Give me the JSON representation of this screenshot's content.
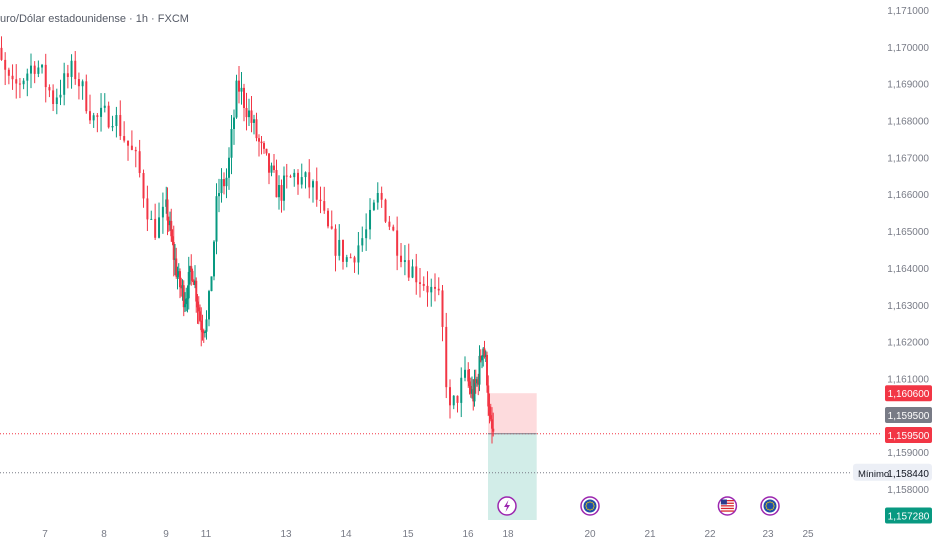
{
  "chart_data": {
    "type": "candlestick",
    "title": "uro/Dólar estadounidense · 1h · FXCM",
    "y_ticks": [
      "1,171000",
      "1,170000",
      "1,169000",
      "1,168000",
      "1,167000",
      "1,166000",
      "1,165000",
      "1,164000",
      "1,163000",
      "1,162000",
      "1,161000",
      "1,159000",
      "1,158000"
    ],
    "x_ticks": [
      {
        "label": "7",
        "day": 7
      },
      {
        "label": "8",
        "day": 8
      },
      {
        "label": "9",
        "day": 9
      },
      {
        "label": "11",
        "day": 11
      },
      {
        "label": "13",
        "day": 13
      },
      {
        "label": "14",
        "day": 14
      },
      {
        "label": "15",
        "day": 15
      },
      {
        "label": "16",
        "day": 16
      },
      {
        "label": "18",
        "day": 18
      },
      {
        "label": "20",
        "day": 20
      },
      {
        "label": "21",
        "day": 21
      },
      {
        "label": "22",
        "day": 22
      },
      {
        "label": "23",
        "day": 23
      },
      {
        "label": "25",
        "day": 25
      }
    ],
    "ylim": [
      1.157,
      1.1715
    ],
    "price_labels": {
      "stop": {
        "text": "1,160600",
        "value": 1.1606,
        "color": "#f23645"
      },
      "entry": {
        "text": "1,159500",
        "value": 1.1595,
        "color": "#f23645"
      },
      "current": {
        "text": "1,159500",
        "value": 1.1595,
        "color": "#787b86"
      },
      "minimum": {
        "label": "Mínimo",
        "text": "1,158440",
        "value": 1.15844
      },
      "target": {
        "text": "1,157280",
        "value": 1.15728,
        "color": "#089981"
      }
    },
    "position": {
      "start_day": 17.0,
      "end_day": 18.7,
      "entry": 1.1595,
      "stop": 1.1606,
      "target": 1.15728
    },
    "anchors": [
      {
        "d": 6.2,
        "p": 1.17
      },
      {
        "d": 6.5,
        "p": 1.1688
      },
      {
        "d": 6.9,
        "p": 1.1696
      },
      {
        "d": 7.2,
        "p": 1.1686
      },
      {
        "d": 7.55,
        "p": 1.1694
      },
      {
        "d": 7.9,
        "p": 1.168
      },
      {
        "d": 8.2,
        "p": 1.1682
      },
      {
        "d": 8.6,
        "p": 1.1668
      },
      {
        "d": 8.85,
        "p": 1.165
      },
      {
        "d": 9.1,
        "p": 1.1656
      },
      {
        "d": 9.4,
        "p": 1.1645
      },
      {
        "d": 9.7,
        "p": 1.1636
      },
      {
        "d": 10.0,
        "p": 1.1632
      },
      {
        "d": 10.4,
        "p": 1.164
      },
      {
        "d": 10.8,
        "p": 1.1625
      },
      {
        "d": 11.1,
        "p": 1.1625
      },
      {
        "d": 11.35,
        "p": 1.166
      },
      {
        "d": 11.6,
        "p": 1.1665
      },
      {
        "d": 11.85,
        "p": 1.169
      },
      {
        "d": 12.1,
        "p": 1.1683
      },
      {
        "d": 12.5,
        "p": 1.167
      },
      {
        "d": 12.9,
        "p": 1.166
      },
      {
        "d": 13.2,
        "p": 1.1665
      },
      {
        "d": 13.5,
        "p": 1.1662
      },
      {
        "d": 13.8,
        "p": 1.1648
      },
      {
        "d": 14.1,
        "p": 1.1642
      },
      {
        "d": 14.4,
        "p": 1.165
      },
      {
        "d": 14.6,
        "p": 1.166
      },
      {
        "d": 14.85,
        "p": 1.1648
      },
      {
        "d": 15.1,
        "p": 1.164
      },
      {
        "d": 15.35,
        "p": 1.1636
      },
      {
        "d": 15.6,
        "p": 1.163
      },
      {
        "d": 15.75,
        "p": 1.16
      },
      {
        "d": 16.0,
        "p": 1.161
      },
      {
        "d": 16.3,
        "p": 1.1605
      },
      {
        "d": 16.55,
        "p": 1.161
      },
      {
        "d": 16.8,
        "p": 1.162
      },
      {
        "d": 17.0,
        "p": 1.1612
      },
      {
        "d": 17.15,
        "p": 1.1597
      },
      {
        "d": 17.3,
        "p": 1.1595
      }
    ],
    "events": [
      {
        "day": 17.95,
        "icon": "lightning-icon"
      },
      {
        "day": 20.0,
        "icon": "eu-flag-icon"
      },
      {
        "day": 22.3,
        "icon": "us-flag-icon"
      },
      {
        "day": 23.1,
        "icon": "eu-flag-icon"
      }
    ]
  }
}
